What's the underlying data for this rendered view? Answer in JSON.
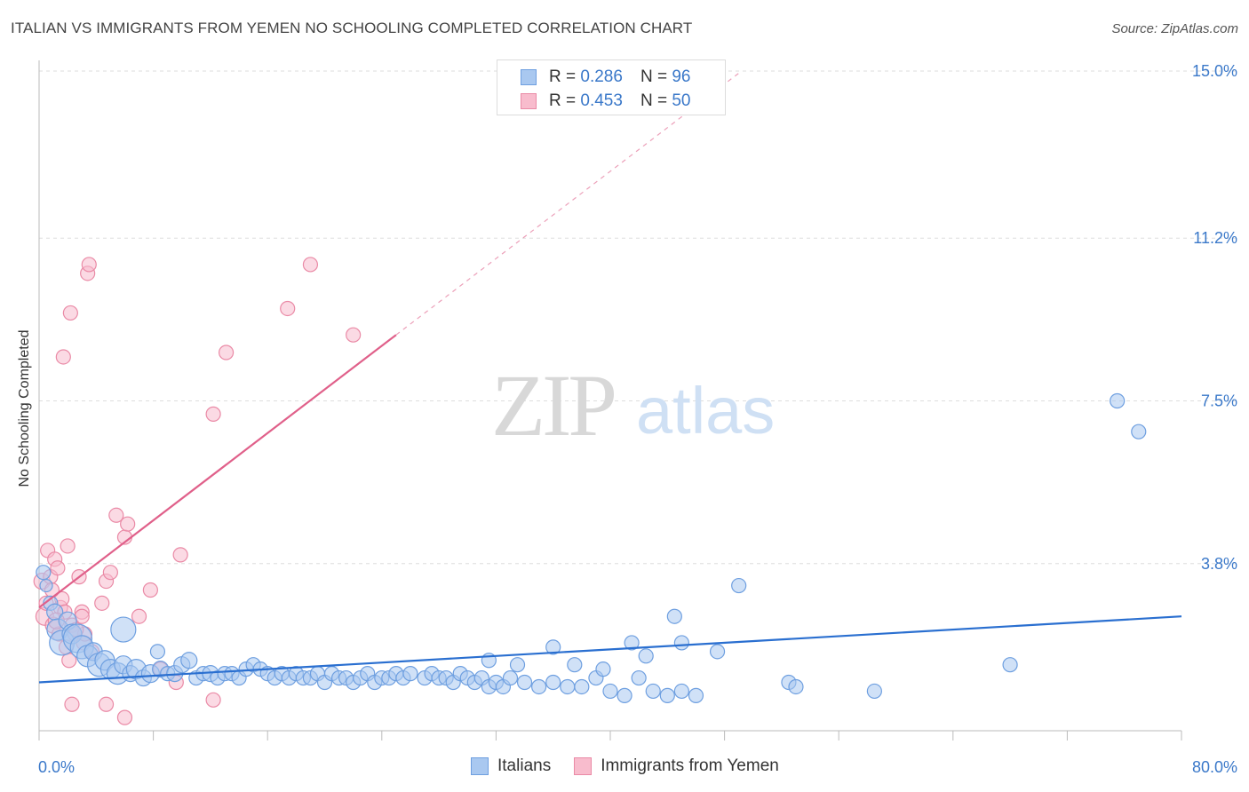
{
  "header": {
    "title": "ITALIAN VS IMMIGRANTS FROM YEMEN NO SCHOOLING COMPLETED CORRELATION CHART",
    "source": "Source: ZipAtlas.com"
  },
  "watermark": {
    "zip": "ZIP",
    "atlas": "atlas"
  },
  "legend_top": {
    "r_label": "R =",
    "n_label": "N =",
    "italians": {
      "r": "0.286",
      "n": "96"
    },
    "yemen": {
      "r": "0.453",
      "n": "50"
    }
  },
  "chart_data": {
    "type": "scatter",
    "title": "ITALIAN VS IMMIGRANTS FROM YEMEN NO SCHOOLING COMPLETED CORRELATION CHART",
    "xlabel": "",
    "ylabel": "No Schooling Completed",
    "xlim": [
      0,
      80
    ],
    "ylim": [
      0,
      15
    ],
    "x_tick_labels": [
      "0.0%",
      "80.0%"
    ],
    "y_ticks": [
      3.8,
      7.5,
      11.2,
      15.0
    ],
    "y_tick_labels": [
      "3.8%",
      "7.5%",
      "11.2%",
      "15.0%"
    ],
    "grid": true,
    "legend_position": "top-center",
    "colors": {
      "italians_fill": "#a9c8f0",
      "italians_stroke": "#6e9fe0",
      "italians_line": "#2a6fd0",
      "yemen_fill": "#f8bccd",
      "yemen_stroke": "#ea8aa6",
      "yemen_line": "#e0608a",
      "tick_text": "#3a78c9"
    },
    "series": [
      {
        "name": "Italians",
        "r": 0.286,
        "n": 96,
        "trend": {
          "x0": 0,
          "y0": 1.1,
          "x1": 80,
          "y1": 2.6,
          "solid_to": 80
        },
        "points": [
          [
            0.3,
            3.6,
            8
          ],
          [
            0.5,
            3.3,
            7
          ],
          [
            0.8,
            2.9,
            8
          ],
          [
            1.1,
            2.7,
            9
          ],
          [
            1.3,
            2.3,
            12
          ],
          [
            1.6,
            2.0,
            14
          ],
          [
            2.0,
            2.5,
            10
          ],
          [
            2.3,
            2.2,
            11
          ],
          [
            2.7,
            2.1,
            16
          ],
          [
            3.0,
            1.9,
            13
          ],
          [
            3.4,
            1.7,
            12
          ],
          [
            3.8,
            1.8,
            10
          ],
          [
            4.2,
            1.5,
            13
          ],
          [
            4.6,
            1.6,
            11
          ],
          [
            5.0,
            1.4,
            11
          ],
          [
            5.5,
            1.3,
            12
          ],
          [
            5.9,
            1.5,
            10
          ],
          [
            6.4,
            1.3,
            9
          ],
          [
            6.8,
            1.4,
            11
          ],
          [
            7.3,
            1.2,
            9
          ],
          [
            7.8,
            1.3,
            10
          ],
          [
            8.5,
            1.4,
            9
          ],
          [
            9.0,
            1.3,
            8
          ],
          [
            9.5,
            1.3,
            9
          ],
          [
            10.0,
            1.5,
            9
          ],
          [
            10.5,
            1.6,
            9
          ],
          [
            11.0,
            1.2,
            8
          ],
          [
            11.5,
            1.3,
            8
          ],
          [
            12.0,
            1.3,
            9
          ],
          [
            12.5,
            1.2,
            8
          ],
          [
            13.0,
            1.3,
            8
          ],
          [
            13.5,
            1.3,
            8
          ],
          [
            14.0,
            1.2,
            8
          ],
          [
            14.5,
            1.4,
            8
          ],
          [
            15.0,
            1.5,
            8
          ],
          [
            15.5,
            1.4,
            8
          ],
          [
            16.0,
            1.3,
            8
          ],
          [
            16.5,
            1.2,
            8
          ],
          [
            17.0,
            1.3,
            8
          ],
          [
            17.5,
            1.2,
            8
          ],
          [
            18.0,
            1.3,
            8
          ],
          [
            18.5,
            1.2,
            8
          ],
          [
            19.0,
            1.2,
            8
          ],
          [
            19.5,
            1.3,
            8
          ],
          [
            20.0,
            1.1,
            8
          ],
          [
            20.5,
            1.3,
            8
          ],
          [
            21.0,
            1.2,
            8
          ],
          [
            21.5,
            1.2,
            8
          ],
          [
            22.0,
            1.1,
            8
          ],
          [
            22.5,
            1.2,
            8
          ],
          [
            23.0,
            1.3,
            8
          ],
          [
            23.5,
            1.1,
            8
          ],
          [
            24.0,
            1.2,
            8
          ],
          [
            24.5,
            1.2,
            8
          ],
          [
            25.0,
            1.3,
            8
          ],
          [
            25.5,
            1.2,
            8
          ],
          [
            26.0,
            1.3,
            8
          ],
          [
            27.0,
            1.2,
            8
          ],
          [
            27.5,
            1.3,
            8
          ],
          [
            28.0,
            1.2,
            8
          ],
          [
            28.5,
            1.2,
            8
          ],
          [
            29.0,
            1.1,
            8
          ],
          [
            29.5,
            1.3,
            8
          ],
          [
            30.0,
            1.2,
            8
          ],
          [
            30.5,
            1.1,
            8
          ],
          [
            31.0,
            1.2,
            8
          ],
          [
            31.5,
            1.0,
            8
          ],
          [
            32.0,
            1.1,
            8
          ],
          [
            32.5,
            1.0,
            8
          ],
          [
            33.0,
            1.2,
            8
          ],
          [
            34.0,
            1.1,
            8
          ],
          [
            35.0,
            1.0,
            8
          ],
          [
            36.0,
            1.1,
            8
          ],
          [
            37.0,
            1.0,
            8
          ],
          [
            38.0,
            1.0,
            8
          ],
          [
            39.0,
            1.2,
            8
          ],
          [
            40.0,
            0.9,
            8
          ],
          [
            41.0,
            0.8,
            8
          ],
          [
            42.0,
            1.2,
            8
          ],
          [
            43.0,
            0.9,
            8
          ],
          [
            44.0,
            0.8,
            8
          ],
          [
            45.0,
            0.9,
            8
          ],
          [
            46.0,
            0.8,
            8
          ],
          [
            31.5,
            1.6,
            8
          ],
          [
            33.5,
            1.5,
            8
          ],
          [
            36.0,
            1.9,
            8
          ],
          [
            37.5,
            1.5,
            8
          ],
          [
            39.5,
            1.4,
            8
          ],
          [
            41.5,
            2.0,
            8
          ],
          [
            42.5,
            1.7,
            8
          ],
          [
            44.5,
            2.6,
            8
          ],
          [
            45.0,
            2.0,
            8
          ],
          [
            47.5,
            1.8,
            8
          ],
          [
            49.0,
            3.3,
            8
          ],
          [
            52.5,
            1.1,
            8
          ],
          [
            53.0,
            1.0,
            8
          ],
          [
            58.5,
            0.9,
            8
          ],
          [
            68.0,
            1.5,
            8
          ],
          [
            75.5,
            7.5,
            8
          ],
          [
            77.0,
            6.8,
            8
          ],
          [
            5.9,
            2.3,
            14
          ],
          [
            8.3,
            1.8,
            8
          ]
        ]
      },
      {
        "name": "Immigrants from Yemen",
        "r": 0.453,
        "n": 50,
        "trend": {
          "x0": 0,
          "y0": 2.8,
          "x1": 50,
          "y1": 15.2,
          "solid_to": 25
        },
        "points": [
          [
            0.2,
            3.4,
            9
          ],
          [
            0.4,
            2.6,
            10
          ],
          [
            0.5,
            2.9,
            8
          ],
          [
            0.6,
            4.1,
            8
          ],
          [
            0.8,
            3.5,
            8
          ],
          [
            1.0,
            2.4,
            9
          ],
          [
            1.1,
            3.9,
            8
          ],
          [
            1.3,
            3.7,
            8
          ],
          [
            1.4,
            2.2,
            8
          ],
          [
            1.5,
            2.8,
            8
          ],
          [
            1.6,
            3.0,
            8
          ],
          [
            1.8,
            2.7,
            8
          ],
          [
            1.9,
            1.9,
            8
          ],
          [
            2.0,
            4.2,
            8
          ],
          [
            2.1,
            1.6,
            8
          ],
          [
            2.3,
            2.4,
            8
          ],
          [
            2.5,
            2.2,
            8
          ],
          [
            2.8,
            3.5,
            8
          ],
          [
            3.0,
            2.7,
            8
          ],
          [
            3.1,
            2.0,
            8
          ],
          [
            3.2,
            2.2,
            8
          ],
          [
            3.4,
            10.4,
            8
          ],
          [
            3.5,
            10.6,
            8
          ],
          [
            3.7,
            1.8,
            8
          ],
          [
            1.7,
            8.5,
            8
          ],
          [
            2.2,
            9.5,
            8
          ],
          [
            5.4,
            4.9,
            8
          ],
          [
            6.0,
            4.4,
            8
          ],
          [
            6.2,
            4.7,
            8
          ],
          [
            4.7,
            3.4,
            8
          ],
          [
            5.0,
            3.6,
            8
          ],
          [
            4.4,
            2.9,
            8
          ],
          [
            7.0,
            2.6,
            8
          ],
          [
            7.8,
            3.2,
            8
          ],
          [
            9.9,
            4.0,
            8
          ],
          [
            8.5,
            1.4,
            8
          ],
          [
            9.6,
            1.1,
            8
          ],
          [
            12.2,
            7.2,
            8
          ],
          [
            13.1,
            8.6,
            8
          ],
          [
            17.4,
            9.6,
            8
          ],
          [
            19.0,
            10.6,
            8
          ],
          [
            22.0,
            9.0,
            8
          ],
          [
            12.2,
            0.7,
            8
          ],
          [
            2.3,
            0.6,
            8
          ],
          [
            4.7,
            0.6,
            8
          ],
          [
            6.0,
            0.3,
            8
          ],
          [
            3.0,
            2.6,
            8
          ],
          [
            0.9,
            3.2,
            8
          ],
          [
            1.2,
            2.5,
            9
          ],
          [
            2.6,
            2.3,
            8
          ]
        ]
      }
    ]
  },
  "legend_bottom": {
    "italians": "Italians",
    "yemen": "Immigrants from Yemen"
  }
}
